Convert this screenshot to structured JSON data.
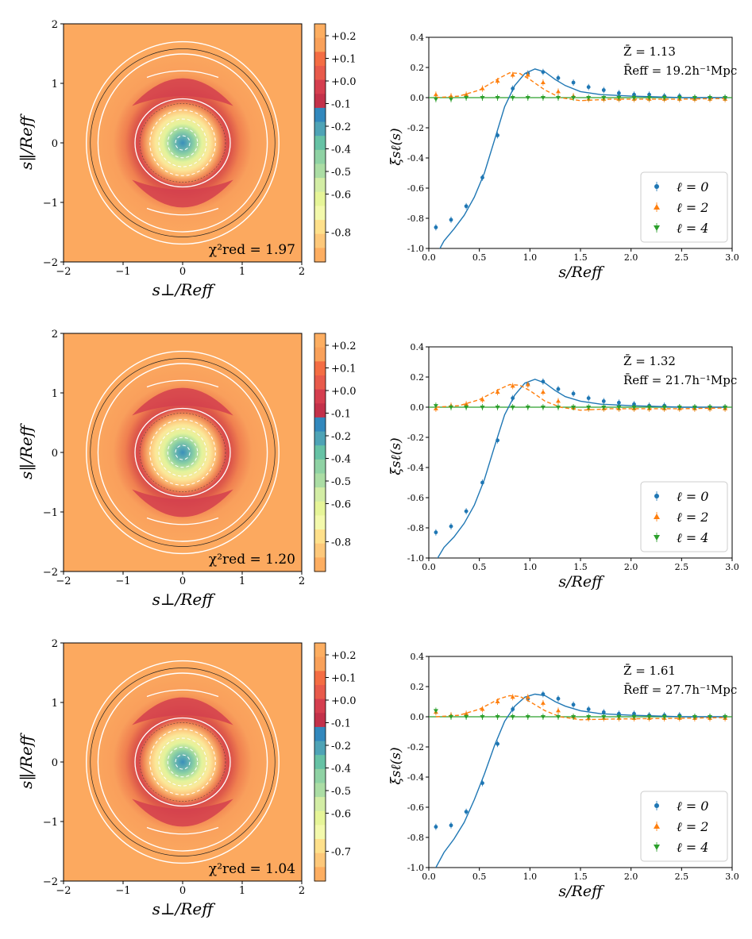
{
  "colorbar": {
    "upper_colors": [
      "#fdae61",
      "#f9a15a",
      "#f46d43",
      "#e85a4b",
      "#d53e4f",
      "#c3314a"
    ],
    "lower_colors": [
      "#3288bd",
      "#4ea3b6",
      "#66c2a5",
      "#8fd2a4",
      "#abdda4",
      "#d3eda5",
      "#e6f598",
      "#f3f9ac",
      "#fee08b",
      "#fdc87a",
      "#fdae61"
    ]
  },
  "panels": [
    {
      "left": {
        "xlabel": "s⊥/Reff",
        "ylabel": "s‖/Reff",
        "xticks": [
          "−2",
          "−1",
          "0",
          "1",
          "2"
        ],
        "yticks": [
          "2",
          "1",
          "0",
          "−1",
          "−2"
        ],
        "chi2_label": "χ²red = 1.97",
        "colorbar_ticks": [
          "+0.2",
          "+0.1",
          "+0.0",
          "-0.1",
          "-0.2",
          "-0.4",
          "-0.5",
          "-0.6",
          "-0.8"
        ],
        "vmin": -0.87,
        "vmax": 0.26
      },
      "right": {
        "z_label": "Z̄ = 1.13",
        "r_label": "R̄eff = 19.2h⁻¹Mpc",
        "R": 19.2
      }
    },
    {
      "left": {
        "xlabel": "s⊥/Reff",
        "ylabel": "s‖/Reff",
        "xticks": [
          "−2",
          "−1",
          "0",
          "1",
          "2"
        ],
        "yticks": [
          "2",
          "1",
          "0",
          "−1",
          "−2"
        ],
        "chi2_label": "χ²red = 1.20",
        "colorbar_ticks": [
          "+0.2",
          "+0.1",
          "+0.0",
          "-0.1",
          "-0.2",
          "-0.4",
          "-0.5",
          "-0.6",
          "-0.8"
        ],
        "vmin": -0.87,
        "vmax": 0.26
      },
      "right": {
        "z_label": "Z̄ = 1.32",
        "r_label": "R̄eff = 21.7h⁻¹Mpc",
        "R": 21.7
      }
    },
    {
      "left": {
        "xlabel": "s⊥/Reff",
        "ylabel": "s‖/Reff",
        "xticks": [
          "−2",
          "−1",
          "0",
          "1",
          "2"
        ],
        "yticks": [
          "2",
          "1",
          "0",
          "−1",
          "−2"
        ],
        "chi2_label": "χ²red = 1.04",
        "colorbar_ticks": [
          "+0.2",
          "+0.1",
          "+0.0",
          "-0.1",
          "-0.2",
          "-0.4",
          "-0.5",
          "-0.6",
          "-0.7"
        ],
        "vmin": -0.75,
        "vmax": 0.25
      },
      "right": {
        "z_label": "Z̄ = 1.61",
        "r_label": "R̄eff = 27.7h⁻¹Mpc",
        "R": 27.7
      }
    }
  ],
  "legend": [
    "ℓ = 0",
    "ℓ = 2",
    "ℓ = 4"
  ],
  "chart_data": [
    {
      "type": "heatmap",
      "title": "",
      "xlabel": "s⊥/Reff",
      "ylabel": "s‖/Reff",
      "xlim": [
        -2,
        2
      ],
      "ylim": [
        -2,
        2
      ],
      "colorbar_range": [
        -0.87,
        0.26
      ],
      "annotation": "χ²red = 1.97"
    },
    {
      "type": "scatter",
      "xlabel": "s/Reff",
      "ylabel": "ξsℓ(s)",
      "xlim": [
        0,
        3
      ],
      "ylim": [
        -1.0,
        0.4
      ],
      "xticks": [
        "0.0",
        "0.5",
        "1.0",
        "1.5",
        "2.0",
        "2.5",
        "3.0"
      ],
      "yticks": [
        "0.4",
        "0.2",
        "0.0",
        "-0.2",
        "-0.4",
        "-0.6",
        "-0.8",
        "-1.0"
      ],
      "x": [
        0.07,
        0.22,
        0.37,
        0.53,
        0.68,
        0.83,
        0.98,
        1.13,
        1.28,
        1.43,
        1.58,
        1.73,
        1.88,
        2.03,
        2.18,
        2.33,
        2.48,
        2.63,
        2.78,
        2.93
      ],
      "series": [
        {
          "name": "ℓ = 0",
          "color": "#1f77b4",
          "marker": "circle",
          "values": [
            -0.86,
            -0.81,
            -0.72,
            -0.53,
            -0.25,
            0.06,
            0.16,
            0.17,
            0.13,
            0.1,
            0.07,
            0.05,
            0.03,
            0.02,
            0.02,
            0.01,
            0.01,
            0.0,
            0.0,
            0.0
          ],
          "model": [
            [
              0.07,
              -1.05
            ],
            [
              0.15,
              -0.95
            ],
            [
              0.25,
              -0.87
            ],
            [
              0.35,
              -0.78
            ],
            [
              0.45,
              -0.66
            ],
            [
              0.55,
              -0.5
            ],
            [
              0.65,
              -0.28
            ],
            [
              0.75,
              -0.06
            ],
            [
              0.85,
              0.08
            ],
            [
              0.95,
              0.16
            ],
            [
              1.05,
              0.19
            ],
            [
              1.15,
              0.17
            ],
            [
              1.25,
              0.12
            ],
            [
              1.35,
              0.08
            ],
            [
              1.5,
              0.04
            ],
            [
              1.7,
              0.02
            ],
            [
              2.0,
              0.01
            ],
            [
              2.5,
              0.0
            ],
            [
              2.95,
              0.0
            ]
          ]
        },
        {
          "name": "ℓ = 2",
          "color": "#ff7f0e",
          "marker": "triangle-up",
          "values": [
            0.02,
            0.01,
            0.02,
            0.06,
            0.11,
            0.15,
            0.15,
            0.1,
            0.04,
            0.01,
            -0.01,
            -0.01,
            -0.01,
            -0.01,
            -0.01,
            -0.01,
            -0.01,
            -0.01,
            -0.01,
            -0.01
          ],
          "model": [
            [
              0.07,
              0.0
            ],
            [
              0.3,
              0.01
            ],
            [
              0.5,
              0.05
            ],
            [
              0.7,
              0.13
            ],
            [
              0.8,
              0.165
            ],
            [
              0.9,
              0.16
            ],
            [
              1.0,
              0.12
            ],
            [
              1.15,
              0.05
            ],
            [
              1.3,
              0.0
            ],
            [
              1.5,
              -0.02
            ],
            [
              1.8,
              -0.01
            ],
            [
              2.5,
              -0.01
            ],
            [
              2.95,
              -0.005
            ]
          ]
        },
        {
          "name": "ℓ = 4",
          "color": "#2ca02c",
          "marker": "triangle-down",
          "values": [
            -0.01,
            -0.01,
            0.0,
            0.0,
            0.0,
            0.0,
            0.0,
            0.0,
            0.0,
            0.0,
            0.0,
            0.0,
            0.0,
            0.0,
            0.0,
            0.0,
            0.0,
            0.0,
            0.0,
            0.0
          ]
        }
      ],
      "annotations": [
        "Z̄ = 1.13",
        "R̄eff = 19.2h⁻¹Mpc"
      ]
    },
    {
      "type": "heatmap",
      "xlabel": "s⊥/Reff",
      "ylabel": "s‖/Reff",
      "xlim": [
        -2,
        2
      ],
      "ylim": [
        -2,
        2
      ],
      "colorbar_range": [
        -0.87,
        0.26
      ],
      "annotation": "χ²red = 1.20"
    },
    {
      "type": "scatter",
      "xlabel": "s/Reff",
      "ylabel": "ξsℓ(s)",
      "xlim": [
        0,
        3
      ],
      "ylim": [
        -1.0,
        0.4
      ],
      "x": [
        0.07,
        0.22,
        0.37,
        0.53,
        0.68,
        0.83,
        0.98,
        1.13,
        1.28,
        1.43,
        1.58,
        1.73,
        1.88,
        2.03,
        2.18,
        2.33,
        2.48,
        2.63,
        2.78,
        2.93
      ],
      "series": [
        {
          "name": "ℓ = 0",
          "color": "#1f77b4",
          "marker": "circle",
          "values": [
            -0.83,
            -0.79,
            -0.69,
            -0.5,
            -0.22,
            0.06,
            0.15,
            0.17,
            0.12,
            0.09,
            0.06,
            0.04,
            0.03,
            0.02,
            0.01,
            0.01,
            0.0,
            0.0,
            0.0,
            0.0
          ],
          "model": [
            [
              0.07,
              -1.02
            ],
            [
              0.15,
              -0.93
            ],
            [
              0.25,
              -0.86
            ],
            [
              0.35,
              -0.77
            ],
            [
              0.45,
              -0.65
            ],
            [
              0.55,
              -0.48
            ],
            [
              0.65,
              -0.26
            ],
            [
              0.75,
              -0.05
            ],
            [
              0.85,
              0.08
            ],
            [
              0.95,
              0.16
            ],
            [
              1.05,
              0.185
            ],
            [
              1.15,
              0.16
            ],
            [
              1.25,
              0.11
            ],
            [
              1.35,
              0.07
            ],
            [
              1.5,
              0.04
            ],
            [
              1.7,
              0.02
            ],
            [
              2.0,
              0.01
            ],
            [
              2.5,
              0.0
            ],
            [
              2.95,
              0.0
            ]
          ]
        },
        {
          "name": "ℓ = 2",
          "color": "#ff7f0e",
          "marker": "triangle-up",
          "values": [
            -0.01,
            0.01,
            0.02,
            0.05,
            0.1,
            0.14,
            0.15,
            0.1,
            0.04,
            0.0,
            -0.01,
            -0.01,
            -0.01,
            -0.01,
            -0.01,
            -0.01,
            -0.01,
            -0.01,
            -0.01,
            -0.01
          ],
          "model": [
            [
              0.07,
              0.0
            ],
            [
              0.3,
              0.01
            ],
            [
              0.5,
              0.05
            ],
            [
              0.7,
              0.12
            ],
            [
              0.8,
              0.15
            ],
            [
              0.9,
              0.145
            ],
            [
              1.0,
              0.11
            ],
            [
              1.15,
              0.04
            ],
            [
              1.3,
              0.0
            ],
            [
              1.5,
              -0.02
            ],
            [
              1.8,
              -0.01
            ],
            [
              2.5,
              -0.01
            ],
            [
              2.95,
              -0.005
            ]
          ]
        },
        {
          "name": "ℓ = 4",
          "color": "#2ca02c",
          "marker": "triangle-down",
          "values": [
            0.01,
            0.0,
            0.0,
            0.0,
            0.0,
            0.0,
            0.0,
            0.0,
            0.0,
            0.0,
            0.0,
            0.0,
            0.0,
            0.0,
            0.0,
            0.0,
            0.0,
            0.0,
            0.0,
            0.0
          ]
        }
      ],
      "annotations": [
        "Z̄ = 1.32",
        "R̄eff = 21.7h⁻¹Mpc"
      ]
    },
    {
      "type": "heatmap",
      "xlabel": "s⊥/Reff",
      "ylabel": "s‖/Reff",
      "xlim": [
        -2,
        2
      ],
      "ylim": [
        -2,
        2
      ],
      "colorbar_range": [
        -0.75,
        0.25
      ],
      "annotation": "χ²red = 1.04"
    },
    {
      "type": "scatter",
      "xlabel": "s/Reff",
      "ylabel": "ξsℓ(s)",
      "xlim": [
        0,
        3
      ],
      "ylim": [
        -1.0,
        0.4
      ],
      "x": [
        0.07,
        0.22,
        0.37,
        0.53,
        0.68,
        0.83,
        0.98,
        1.13,
        1.28,
        1.43,
        1.58,
        1.73,
        1.88,
        2.03,
        2.18,
        2.33,
        2.48,
        2.63,
        2.78,
        2.93
      ],
      "series": [
        {
          "name": "ℓ = 0",
          "color": "#1f77b4",
          "marker": "circle",
          "values": [
            -0.73,
            -0.72,
            -0.63,
            -0.44,
            -0.18,
            0.05,
            0.12,
            0.15,
            0.12,
            0.08,
            0.05,
            0.03,
            0.02,
            0.02,
            0.01,
            0.01,
            0.01,
            0.0,
            0.0,
            0.0
          ],
          "model": [
            [
              0.07,
              -1.0
            ],
            [
              0.15,
              -0.9
            ],
            [
              0.25,
              -0.81
            ],
            [
              0.35,
              -0.7
            ],
            [
              0.45,
              -0.55
            ],
            [
              0.55,
              -0.38
            ],
            [
              0.65,
              -0.19
            ],
            [
              0.75,
              -0.03
            ],
            [
              0.85,
              0.07
            ],
            [
              0.95,
              0.13
            ],
            [
              1.05,
              0.15
            ],
            [
              1.15,
              0.14
            ],
            [
              1.25,
              0.1
            ],
            [
              1.35,
              0.07
            ],
            [
              1.5,
              0.04
            ],
            [
              1.7,
              0.02
            ],
            [
              2.0,
              0.01
            ],
            [
              2.5,
              0.0
            ],
            [
              2.95,
              0.0
            ]
          ]
        },
        {
          "name": "ℓ = 2",
          "color": "#ff7f0e",
          "marker": "triangle-up",
          "values": [
            0.03,
            0.01,
            0.02,
            0.05,
            0.1,
            0.13,
            0.13,
            0.09,
            0.04,
            0.0,
            -0.01,
            -0.01,
            -0.01,
            -0.01,
            -0.01,
            -0.01,
            -0.01,
            -0.01,
            -0.01,
            -0.01
          ],
          "model": [
            [
              0.07,
              0.0
            ],
            [
              0.3,
              0.01
            ],
            [
              0.5,
              0.05
            ],
            [
              0.7,
              0.12
            ],
            [
              0.8,
              0.14
            ],
            [
              0.9,
              0.135
            ],
            [
              1.0,
              0.1
            ],
            [
              1.15,
              0.04
            ],
            [
              1.3,
              0.0
            ],
            [
              1.5,
              -0.02
            ],
            [
              1.8,
              -0.015
            ],
            [
              2.5,
              -0.01
            ],
            [
              2.95,
              -0.005
            ]
          ]
        },
        {
          "name": "ℓ = 4",
          "color": "#2ca02c",
          "marker": "triangle-down",
          "values": [
            0.04,
            0.0,
            0.0,
            0.0,
            0.0,
            0.0,
            0.0,
            0.0,
            0.0,
            0.0,
            0.0,
            0.0,
            0.0,
            0.0,
            0.0,
            0.0,
            0.0,
            0.0,
            0.0,
            0.0
          ]
        }
      ],
      "annotations": [
        "Z̄ = 1.61",
        "R̄eff = 27.7h⁻¹Mpc"
      ]
    }
  ]
}
